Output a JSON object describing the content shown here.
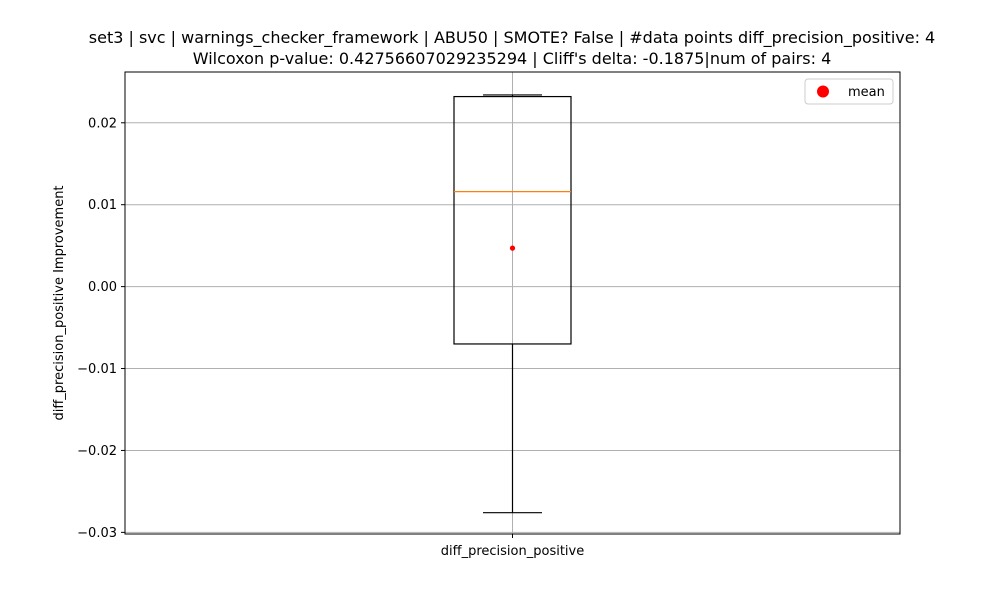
{
  "chart_data": {
    "type": "box",
    "title_line1": "set3 | svc | warnings_checker_framework | ABU50 | SMOTE? False | #data points diff_precision_positive: 4",
    "title_line2": "Wilcoxon p-value: 0.42756607029235294 | Cliff's delta: -0.1875|num of pairs: 4",
    "xlabel": "",
    "ylabel": "diff_precision_positive Improvement",
    "categories": [
      "diff_precision_positive"
    ],
    "ylim": [
      -0.0302,
      0.0262
    ],
    "yticks": [
      0.02,
      0.01,
      0.0,
      -0.01,
      -0.02,
      -0.03
    ],
    "ytick_labels": [
      "0.02",
      "0.01",
      "0.00",
      "−0.01",
      "−0.02",
      "−0.03"
    ],
    "box": {
      "whisker_low": -0.0276,
      "q1": -0.007,
      "median": 0.0116,
      "q3": 0.0232,
      "whisker_high": 0.0234,
      "mean": 0.0047
    },
    "legend": {
      "label": "mean",
      "placement": "top-right"
    },
    "grid": true,
    "colors": {
      "box": "#000000",
      "median": "#ff7f0e",
      "mean": "#ff0000",
      "grid": "#b0b0b0"
    }
  }
}
